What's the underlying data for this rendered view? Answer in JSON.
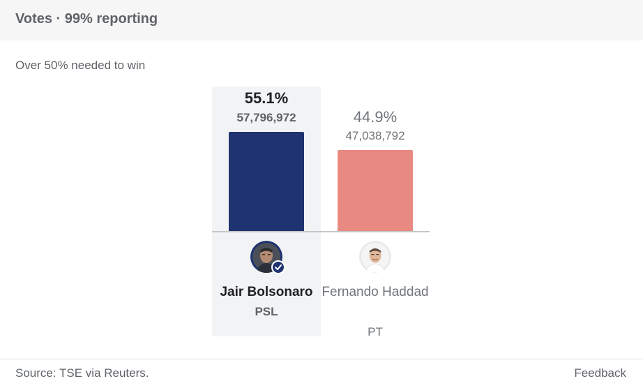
{
  "header": {
    "title": "Votes · 99% reporting"
  },
  "subtitle": "Over 50% needed to win",
  "chart_data": {
    "type": "bar",
    "categories": [
      "Jair Bolsonaro",
      "Fernando Haddad"
    ],
    "values": [
      55.1,
      44.9
    ],
    "unit": "%",
    "ylim": [
      0,
      100
    ],
    "candidates": [
      {
        "name": "Jair Bolsonaro",
        "party": "PSL",
        "percent_label": "55.1%",
        "votes_label": "57,796,972",
        "percent": 55.1,
        "votes": 57796972,
        "color": "#1f3370",
        "winner": true
      },
      {
        "name": "Fernando Haddad",
        "party": "PT",
        "percent_label": "44.9%",
        "votes_label": "47,038,792",
        "percent": 44.9,
        "votes": 47038792,
        "color": "#e98a82",
        "winner": false
      }
    ]
  },
  "footer": {
    "source": "Source: TSE via Reuters.",
    "feedback": "Feedback"
  }
}
